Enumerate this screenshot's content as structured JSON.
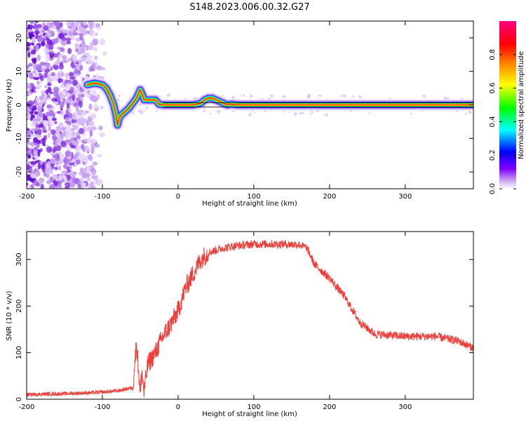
{
  "title": "S148.2023.006.00.32.G27",
  "chart_data": [
    {
      "type": "heatmap",
      "xlabel": "Height of straight line (km)",
      "ylabel": "Frequency (Hz)",
      "xlim": [
        -200,
        390
      ],
      "ylim": [
        -25,
        25
      ],
      "xticks": [
        -200,
        -100,
        0,
        100,
        200,
        300
      ],
      "yticks": [
        -20,
        -10,
        0,
        10,
        20
      ],
      "colorbar": {
        "label": "Normalized spectral amplitude",
        "range": [
          0,
          1
        ],
        "ticks": [
          "0.0",
          "0.2",
          "0.4",
          "0.6",
          "0.8"
        ]
      },
      "signal_trace": {
        "x": [
          -120,
          -110,
          -100,
          -95,
          -90,
          -85,
          -82,
          -80,
          -78,
          -75,
          -70,
          -65,
          -60,
          -55,
          -50,
          -47,
          -45,
          -40,
          -35,
          -30,
          -25,
          -20,
          0,
          20,
          30,
          35,
          40,
          45,
          50,
          55,
          60,
          65,
          70,
          80,
          100,
          150,
          200,
          250,
          300,
          350,
          390
        ],
        "y": [
          6,
          6.5,
          6,
          5,
          3,
          0,
          -3,
          -6,
          -4,
          -3,
          -2,
          -1,
          0.5,
          2,
          4.5,
          3,
          1.5,
          1.5,
          1.5,
          1.5,
          0.2,
          0,
          0,
          0,
          0.5,
          1.5,
          2,
          2,
          1.5,
          1,
          0.5,
          0,
          0.2,
          0,
          0,
          0,
          0,
          0,
          0,
          0,
          0
        ]
      },
      "noise_region_x": [
        -200,
        -95
      ]
    },
    {
      "type": "line",
      "xlabel": "Height of straight line (km)",
      "ylabel": "SNR (10 * v/v)",
      "xlim": [
        -200,
        390
      ],
      "ylim": [
        0,
        360
      ],
      "xticks": [
        -200,
        -100,
        0,
        100,
        200,
        300
      ],
      "yticks": [
        0,
        100,
        200,
        300
      ],
      "color": "#ef3b36",
      "series": [
        {
          "x": [
            -200,
            -150,
            -100,
            -80,
            -60,
            -55,
            -52,
            -50,
            -48,
            -45,
            -40,
            -30,
            -20,
            -10,
            0,
            10,
            20,
            30,
            40,
            60,
            80,
            100,
            120,
            140,
            160,
            170,
            180,
            200,
            220,
            240,
            260,
            300,
            340,
            370,
            390
          ],
          "y": [
            10,
            12,
            15,
            18,
            25,
            120,
            60,
            10,
            60,
            15,
            75,
            100,
            135,
            160,
            190,
            240,
            270,
            300,
            315,
            325,
            330,
            333,
            333,
            333,
            332,
            325,
            290,
            260,
            220,
            165,
            140,
            135,
            135,
            125,
            110
          ]
        }
      ]
    }
  ]
}
